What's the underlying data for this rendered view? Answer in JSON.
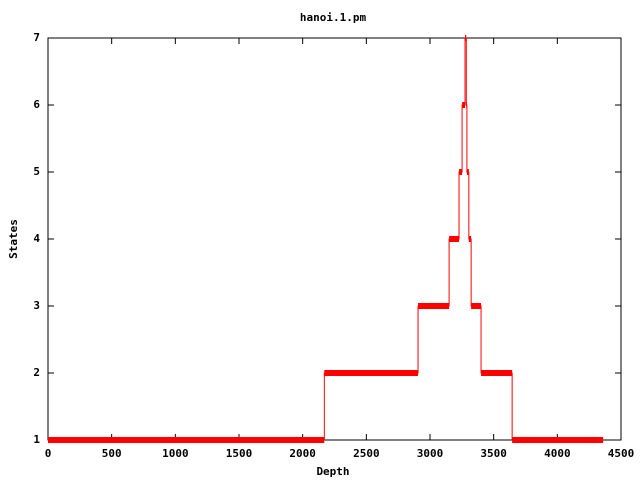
{
  "chart_data": {
    "type": "line",
    "title": "hanoi.1.pm",
    "x_label": "Depth",
    "y_label": "States",
    "x": [
      0,
      2170,
      2170,
      2906,
      2906,
      3150,
      3150,
      3228,
      3228,
      3252,
      3252,
      3275,
      3275,
      3285,
      3285,
      3290,
      3290,
      3305,
      3305,
      3323,
      3323,
      3401,
      3401,
      3645,
      3645,
      4360
    ],
    "series": [
      {
        "name": "hanoi.1.pm",
        "color": "#ff0000",
        "values": [
          1,
          1,
          2,
          2,
          3,
          3,
          4,
          4,
          5,
          5,
          6,
          6,
          7,
          7,
          6,
          6,
          5,
          5,
          4,
          4,
          3,
          3,
          2,
          2,
          1,
          1
        ]
      }
    ],
    "xlim": [
      0,
      4500
    ],
    "xticks": [
      0,
      500,
      1000,
      1500,
      2000,
      2500,
      3000,
      3500,
      4000,
      4500
    ],
    "ylim": [
      1,
      7
    ],
    "yticks": [
      1,
      2,
      3,
      4,
      5,
      6,
      7
    ],
    "grid": false
  }
}
